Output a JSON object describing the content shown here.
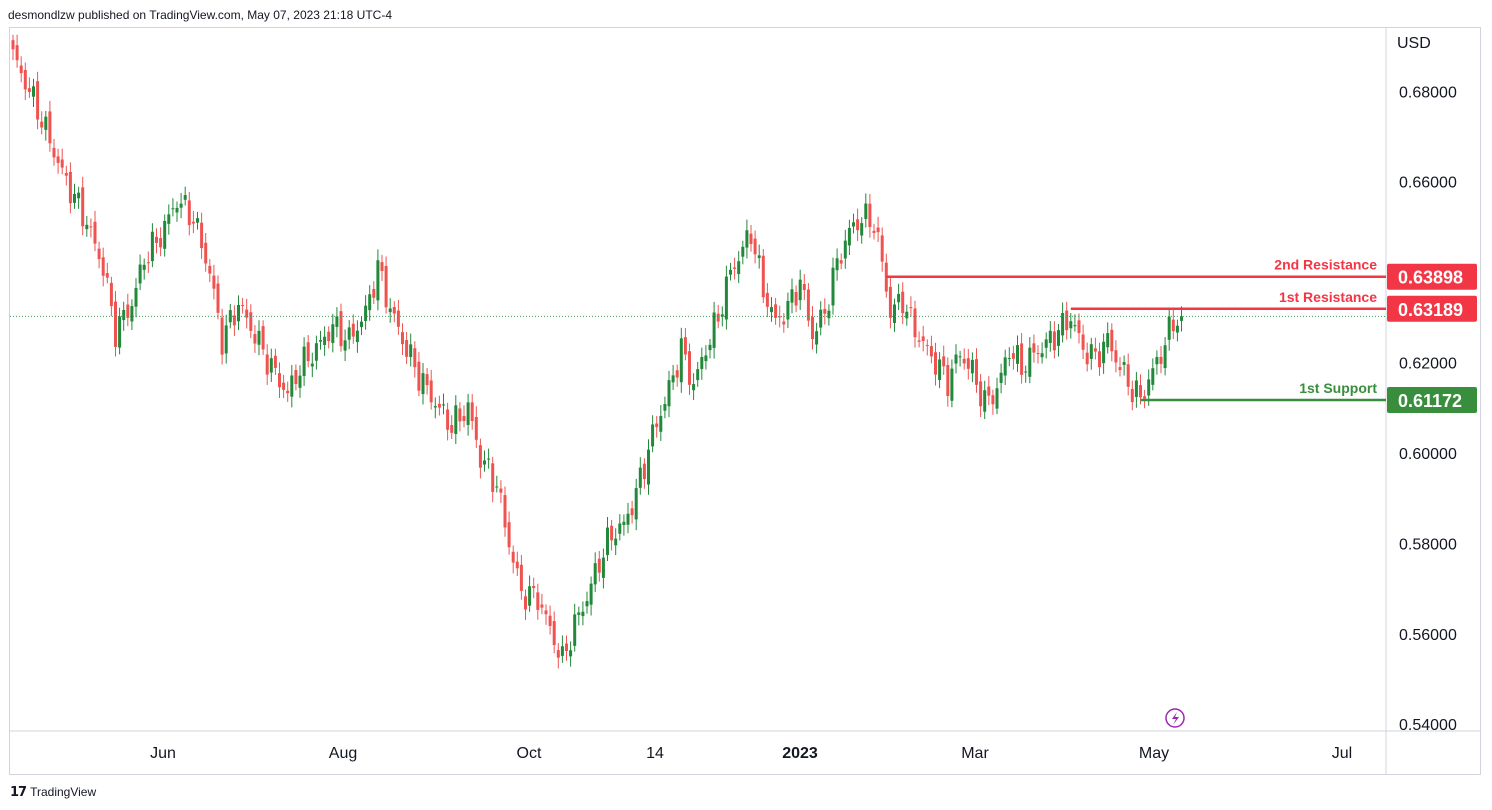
{
  "header": {
    "published_line": "desmondlzw published on TradingView.com, May 07, 2023 21:18 UTC-4"
  },
  "footer": {
    "brand": "TradingView",
    "logo_icon": "tradingview-logo-icon"
  },
  "price_axis": {
    "currency": "USD",
    "ticks": [
      "0.68000",
      "0.66000",
      "0.62000",
      "0.60000",
      "0.58000",
      "0.56000",
      "0.54000"
    ]
  },
  "time_axis": {
    "ticks": [
      {
        "label": "Jun",
        "bold": false
      },
      {
        "label": "Aug",
        "bold": false
      },
      {
        "label": "Oct",
        "bold": false
      },
      {
        "label": "14",
        "bold": false
      },
      {
        "label": "2023",
        "bold": true
      },
      {
        "label": "Mar",
        "bold": false
      },
      {
        "label": "May",
        "bold": false
      },
      {
        "label": "Jul",
        "bold": false
      }
    ]
  },
  "colors": {
    "bull": "#22893a",
    "bear": "#ef5350",
    "resistance": "#f23645",
    "support": "#388e3c",
    "current_price_line": "#3b9a4e",
    "grid_border": "#d1d4dc",
    "flash_icon": "#9c27b0"
  },
  "levels": [
    {
      "name": "2nd Resistance",
      "value": 0.63898,
      "label": "0.63898",
      "kind": "resistance",
      "start_index": 213
    },
    {
      "name": "1st Resistance",
      "value": 0.63189,
      "label": "0.63189",
      "kind": "resistance",
      "start_index": 258
    },
    {
      "name": "1st Support",
      "value": 0.61172,
      "label": "0.61172",
      "kind": "support",
      "start_index": 275
    }
  ],
  "chart_data": {
    "type": "candlestick",
    "title": "",
    "ylabel": "USD",
    "xlabel": "",
    "ylim": [
      0.5385,
      0.694
    ],
    "current_price": 0.6302,
    "grid": false,
    "anchors": [
      [
        0,
        0.688
      ],
      [
        6,
        0.676
      ],
      [
        12,
        0.662
      ],
      [
        18,
        0.651
      ],
      [
        22,
        0.641
      ],
      [
        25,
        0.627
      ],
      [
        29,
        0.633
      ],
      [
        32,
        0.643
      ],
      [
        36,
        0.648
      ],
      [
        40,
        0.656
      ],
      [
        44,
        0.652
      ],
      [
        48,
        0.64
      ],
      [
        51,
        0.625
      ],
      [
        55,
        0.633
      ],
      [
        59,
        0.626
      ],
      [
        63,
        0.619
      ],
      [
        67,
        0.613
      ],
      [
        70,
        0.619
      ],
      [
        74,
        0.623
      ],
      [
        78,
        0.628
      ],
      [
        82,
        0.625
      ],
      [
        86,
        0.631
      ],
      [
        89,
        0.641
      ],
      [
        92,
        0.632
      ],
      [
        95,
        0.625
      ],
      [
        99,
        0.617
      ],
      [
        103,
        0.611
      ],
      [
        107,
        0.606
      ],
      [
        111,
        0.61
      ],
      [
        114,
        0.599
      ],
      [
        118,
        0.593
      ],
      [
        121,
        0.58
      ],
      [
        124,
        0.569
      ],
      [
        128,
        0.568
      ],
      [
        131,
        0.561
      ],
      [
        134,
        0.554
      ],
      [
        137,
        0.562
      ],
      [
        140,
        0.568
      ],
      [
        143,
        0.576
      ],
      [
        146,
        0.582
      ],
      [
        149,
        0.584
      ],
      [
        152,
        0.591
      ],
      [
        156,
        0.604
      ],
      [
        160,
        0.614
      ],
      [
        163,
        0.623
      ],
      [
        166,
        0.615
      ],
      [
        169,
        0.623
      ],
      [
        172,
        0.63
      ],
      [
        175,
        0.64
      ],
      [
        178,
        0.645
      ],
      [
        180,
        0.649
      ],
      [
        183,
        0.636
      ],
      [
        186,
        0.629
      ],
      [
        189,
        0.632
      ],
      [
        192,
        0.638
      ],
      [
        195,
        0.626
      ],
      [
        198,
        0.631
      ],
      [
        201,
        0.642
      ],
      [
        204,
        0.649
      ],
      [
        207,
        0.652
      ],
      [
        210,
        0.651
      ],
      [
        212,
        0.642
      ],
      [
        214,
        0.631
      ],
      [
        217,
        0.634
      ],
      [
        219,
        0.629
      ],
      [
        222,
        0.624
      ],
      [
        225,
        0.62
      ],
      [
        228,
        0.616
      ],
      [
        231,
        0.622
      ],
      [
        234,
        0.618
      ],
      [
        237,
        0.611
      ],
      [
        240,
        0.614
      ],
      [
        243,
        0.623
      ],
      [
        246,
        0.619
      ],
      [
        249,
        0.622
      ],
      [
        252,
        0.624
      ],
      [
        255,
        0.627
      ],
      [
        258,
        0.63
      ],
      [
        261,
        0.623
      ],
      [
        264,
        0.621
      ],
      [
        267,
        0.625
      ],
      [
        270,
        0.619
      ],
      [
        273,
        0.614
      ],
      [
        275,
        0.612
      ],
      [
        277,
        0.616
      ],
      [
        280,
        0.622
      ],
      [
        283,
        0.629
      ],
      [
        285,
        0.6305
      ]
    ]
  }
}
